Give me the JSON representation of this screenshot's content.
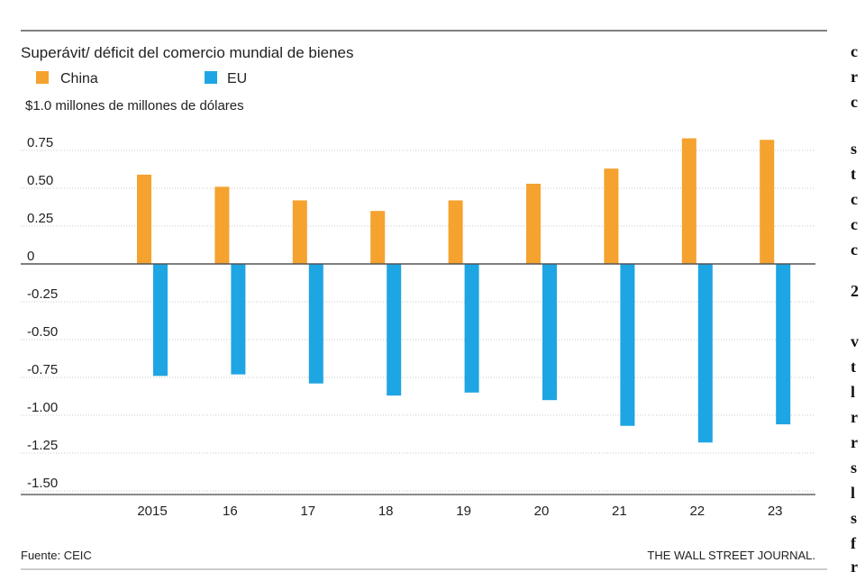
{
  "chart_data": {
    "type": "bar",
    "title": "Superávit/ déficit del comercio mundial de bienes",
    "unit_label": "$1.0 millones de millones de dólares",
    "categories": [
      "2015",
      "16",
      "17",
      "18",
      "19",
      "20",
      "21",
      "22",
      "23"
    ],
    "series": [
      {
        "name": "China",
        "color": "#F5A22F",
        "values": [
          0.59,
          0.51,
          0.42,
          0.35,
          0.42,
          0.53,
          0.63,
          0.83,
          0.82
        ]
      },
      {
        "name": "EU",
        "color": "#1EA5E3",
        "values": [
          -0.74,
          -0.73,
          -0.79,
          -0.87,
          -0.85,
          -0.9,
          -1.07,
          -1.18,
          -1.06
        ]
      }
    ],
    "y_ticks": [
      "0.75",
      "0.50",
      "0.25",
      "0",
      "-0.25",
      "-0.50",
      "-0.75",
      "-1.00",
      "-1.25",
      "-1.50"
    ],
    "ylim": [
      -1.5,
      0.75
    ],
    "grid": "horizontal dotted",
    "legend": "top-left",
    "source": "Fuente: CEIC",
    "publisher": "THE WALL STREET JOURNAL."
  },
  "side_text": [
    "c",
    "r",
    "c",
    "s",
    "t",
    "c",
    "c",
    "c",
    "2",
    "v",
    "t",
    "l",
    "r",
    "r",
    "s",
    "l",
    "s",
    "f",
    "r"
  ]
}
